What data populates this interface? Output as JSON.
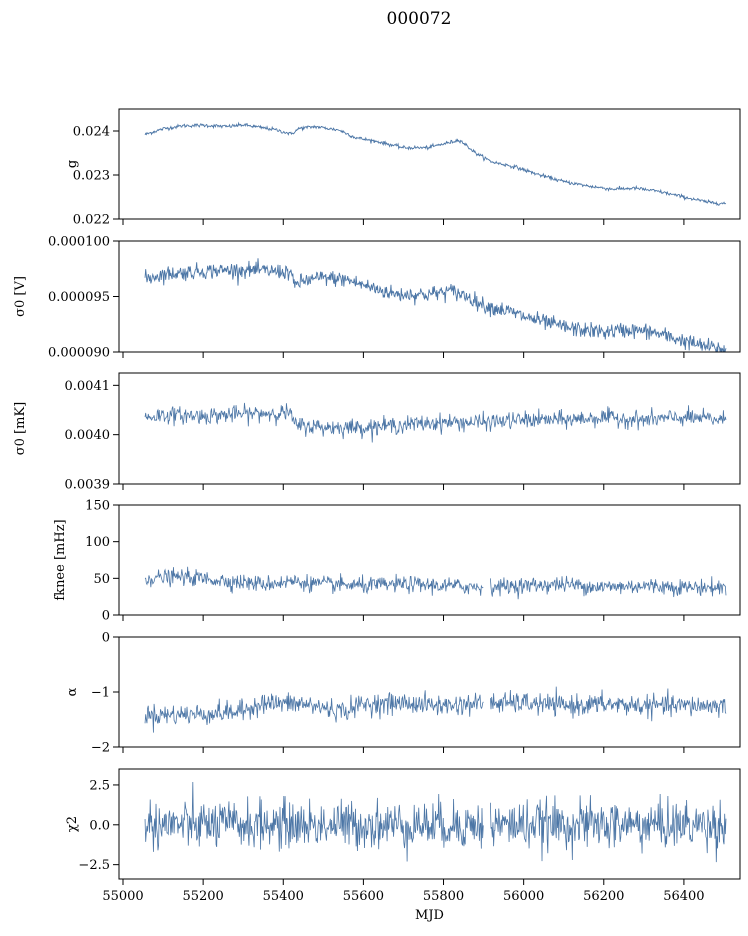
{
  "figure": {
    "title": "000072",
    "line_color": "#4c76a6"
  },
  "chart_data": [
    {
      "type": "line",
      "ylabel": "g",
      "ylim": [
        0.022,
        0.0245
      ],
      "yticks": [
        0.022,
        0.023,
        0.024
      ],
      "ytick_labels": [
        "0.022",
        "0.023",
        "0.024"
      ],
      "xlim": [
        54990,
        56540
      ],
      "series": [
        {
          "x_range": [
            55055,
            56505
          ],
          "noise": 2e-05,
          "trend": [
            [
              55055,
              0.02392
            ],
            [
              55100,
              0.02405
            ],
            [
              55150,
              0.02412
            ],
            [
              55200,
              0.02413
            ],
            [
              55260,
              0.0241
            ],
            [
              55300,
              0.02414
            ],
            [
              55380,
              0.02403
            ],
            [
              55420,
              0.02393
            ],
            [
              55440,
              0.02406
            ],
            [
              55480,
              0.0241
            ],
            [
              55540,
              0.02402
            ],
            [
              55580,
              0.02385
            ],
            [
              55640,
              0.02375
            ],
            [
              55700,
              0.02362
            ],
            [
              55760,
              0.02362
            ],
            [
              55820,
              0.02375
            ],
            [
              55840,
              0.0238
            ],
            [
              55880,
              0.0235
            ],
            [
              55920,
              0.0233
            ],
            [
              55980,
              0.02318
            ],
            [
              56040,
              0.023
            ],
            [
              56100,
              0.02285
            ],
            [
              56160,
              0.02275
            ],
            [
              56220,
              0.02268
            ],
            [
              56280,
              0.0227
            ],
            [
              56340,
              0.02262
            ],
            [
              56400,
              0.0225
            ],
            [
              56460,
              0.02238
            ],
            [
              56505,
              0.02235
            ]
          ]
        }
      ]
    },
    {
      "type": "line",
      "ylabel": "σ0 [V]",
      "ylim": [
        9e-05,
        0.0001
      ],
      "yticks": [
        9e-05,
        9.5e-05,
        0.0001
      ],
      "ytick_labels": [
        "0.000090",
        "0.000095",
        "0.000100"
      ],
      "xlim": [
        54990,
        56540
      ],
      "series": [
        {
          "x_range": [
            55055,
            56505
          ],
          "noise": 3.5e-07,
          "trend": [
            [
              55055,
              9.66e-05
            ],
            [
              55100,
              9.7e-05
            ],
            [
              55200,
              9.73e-05
            ],
            [
              55300,
              9.74e-05
            ],
            [
              55420,
              9.72e-05
            ],
            [
              55425,
              9.6e-05
            ],
            [
              55450,
              9.64e-05
            ],
            [
              55500,
              9.67e-05
            ],
            [
              55560,
              9.65e-05
            ],
            [
              55620,
              9.58e-05
            ],
            [
              55680,
              9.52e-05
            ],
            [
              55760,
              9.52e-05
            ],
            [
              55820,
              9.55e-05
            ],
            [
              55860,
              9.5e-05
            ],
            [
              55900,
              9.42e-05
            ],
            [
              55960,
              9.37e-05
            ],
            [
              56000,
              9.32e-05
            ],
            [
              56060,
              9.26e-05
            ],
            [
              56120,
              9.21e-05
            ],
            [
              56200,
              9.18e-05
            ],
            [
              56260,
              9.2e-05
            ],
            [
              56320,
              9.18e-05
            ],
            [
              56380,
              9.12e-05
            ],
            [
              56440,
              9.06e-05
            ],
            [
              56505,
              9.02e-05
            ]
          ]
        }
      ]
    },
    {
      "type": "line",
      "ylabel": "σ0 [mK]",
      "ylim": [
        0.0039,
        0.004125
      ],
      "yticks": [
        0.0039,
        0.004,
        0.0041
      ],
      "ytick_labels": [
        "0.0039",
        "0.0040",
        "0.0041"
      ],
      "xlim": [
        54990,
        56540
      ],
      "series": [
        {
          "x_range": [
            55055,
            56505
          ],
          "noise": 8.5e-06,
          "trend": [
            [
              55055,
              0.004035
            ],
            [
              55100,
              0.00404
            ],
            [
              55200,
              0.004038
            ],
            [
              55300,
              0.004042
            ],
            [
              55420,
              0.004045
            ],
            [
              55425,
              0.00402
            ],
            [
              55500,
              0.004015
            ],
            [
              55600,
              0.004015
            ],
            [
              55700,
              0.00402
            ],
            [
              55800,
              0.004025
            ],
            [
              55900,
              0.004025
            ],
            [
              56000,
              0.00403
            ],
            [
              56100,
              0.00403
            ],
            [
              56200,
              0.004035
            ],
            [
              56300,
              0.00403
            ],
            [
              56400,
              0.004035
            ],
            [
              56505,
              0.00403
            ]
          ]
        }
      ]
    },
    {
      "type": "line",
      "ylabel": "fknee [mHz]",
      "ylim": [
        0,
        150
      ],
      "yticks": [
        0,
        50,
        100,
        150
      ],
      "ytick_labels": [
        "0",
        "50",
        "100",
        "150"
      ],
      "xlim": [
        54990,
        56540
      ],
      "series": [
        {
          "x_range": [
            55055,
            56505
          ],
          "noise": 5.5,
          "trend": [
            [
              55055,
              50
            ],
            [
              55150,
              52
            ],
            [
              55250,
              47
            ],
            [
              55350,
              42
            ],
            [
              55420,
              46
            ],
            [
              55500,
              42
            ],
            [
              55600,
              40
            ],
            [
              55700,
              42
            ],
            [
              55800,
              40
            ],
            [
              55900,
              38
            ],
            [
              56000,
              40
            ],
            [
              56100,
              42
            ],
            [
              56200,
              38
            ],
            [
              56300,
              40
            ],
            [
              56400,
              38
            ],
            [
              56505,
              37
            ]
          ]
        }
      ]
    },
    {
      "type": "line",
      "ylabel": "α",
      "ylim": [
        -2,
        0
      ],
      "yticks": [
        -2,
        -1,
        0
      ],
      "ytick_labels": [
        "−2",
        "−1",
        "0"
      ],
      "xlim": [
        54990,
        56540
      ],
      "series": [
        {
          "x_range": [
            55055,
            56505
          ],
          "noise": 0.095,
          "trend": [
            [
              55055,
              -1.42
            ],
            [
              55200,
              -1.4
            ],
            [
              55300,
              -1.35
            ],
            [
              55340,
              -1.2
            ],
            [
              55450,
              -1.22
            ],
            [
              55550,
              -1.35
            ],
            [
              55600,
              -1.22
            ],
            [
              55700,
              -1.2
            ],
            [
              55800,
              -1.25
            ],
            [
              55900,
              -1.2
            ],
            [
              56000,
              -1.2
            ],
            [
              56100,
              -1.25
            ],
            [
              56200,
              -1.22
            ],
            [
              56300,
              -1.25
            ],
            [
              56400,
              -1.25
            ],
            [
              56505,
              -1.25
            ]
          ]
        }
      ]
    },
    {
      "type": "line",
      "ylabel": "χ2",
      "ylim": [
        -3.4,
        3.5
      ],
      "yticks": [
        -2.5,
        0,
        2.5
      ],
      "ytick_labels": [
        "−2.5",
        "0.0",
        "2.5"
      ],
      "xlabel": "MJD",
      "xlim": [
        54990,
        56540
      ],
      "xticks": [
        55000,
        55200,
        55400,
        55600,
        55800,
        56000,
        56200,
        56400
      ],
      "xtick_labels": [
        "55000",
        "55200",
        "55400",
        "55600",
        "55800",
        "56000",
        "56200",
        "56400"
      ],
      "series": [
        {
          "x_range": [
            55055,
            56505
          ],
          "noise": 0.75,
          "trend": [
            [
              55055,
              0.0
            ],
            [
              56505,
              0.0
            ]
          ]
        }
      ]
    }
  ]
}
